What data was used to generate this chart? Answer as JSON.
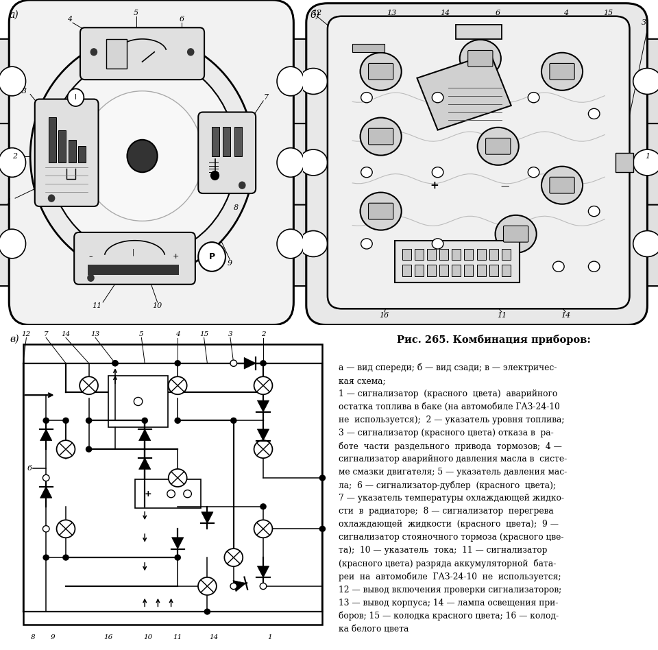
{
  "title": "Рис. 265. Комбинация приборов:",
  "text_lines": [
    "а — вид спереди; б — вид сзади; в — электричес-",
    "кая схема;",
    "1 — сигнализатор  (красного  цвета)  аварийного",
    "остатка топлива в баке (на автомобиле ГАЗ-24-10",
    "не  используется);  2 — указатель уровня топлива;",
    "3 — сигнализатор (красного цвета) отказа в  ра-",
    "боте  части  раздельного  привода  тормозов;  4 —",
    "сигнализатор аварийного давления масла в  систе-",
    "ме смазки двигателя; 5 — указатель давления мас-",
    "ла;  6 — сигнализатор-дублер  (красного  цвета);",
    "7 — указатель температуры охлаждающей жидко-",
    "сти  в  радиаторе;  8 — сигнализатор  перегрева",
    "охлаждающей  жидкости  (красного  цвета);  9 —",
    "сигнализатор стояночного тормоза (красного цве-",
    "та);  10 — указатель  тока;  11 — сигнализатор",
    "(красного цвета) разряда аккумуляторной  бата-",
    "реи  на  автомобиле  ГАЗ-24-10  не  используется;",
    "12 — вывод включения проверки сигнализаторов;",
    "13 — вывод корпуса; 14 — лампа освещения при-",
    "боров; 15 — колодка красного цвета; 16 — колод-",
    "ка белого цвета"
  ],
  "bg_color": "#ffffff",
  "lc": "#000000",
  "gray1": "#888888",
  "gray2": "#cccccc",
  "gray3": "#e8e8e8"
}
